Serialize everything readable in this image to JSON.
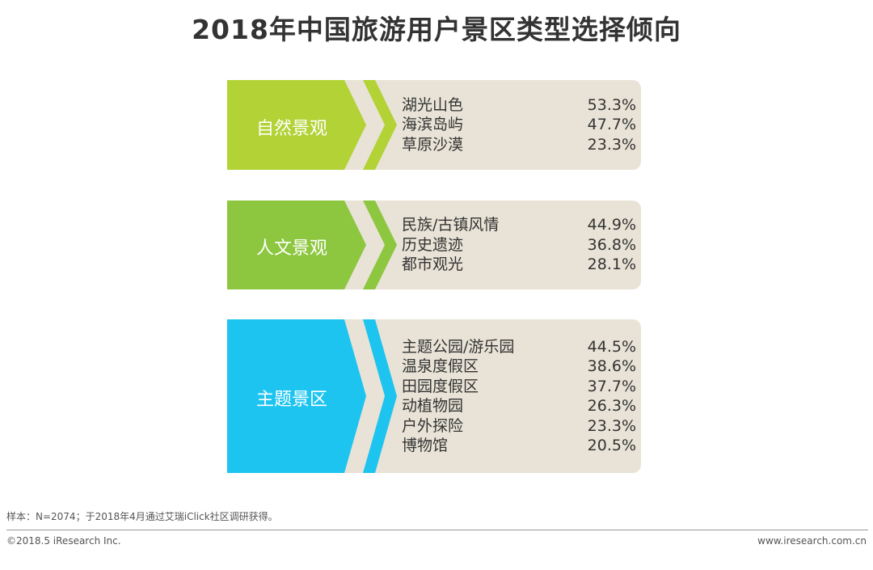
{
  "chart_data": {
    "type": "table",
    "title": "2018年中国旅游用户景区类型选择倾向",
    "groups": [
      {
        "name": "自然景观",
        "color": "#b2d235",
        "items": [
          {
            "label": "湖光山色",
            "value": 53.3,
            "display": "53.3%"
          },
          {
            "label": "海滨岛屿",
            "value": 47.7,
            "display": "47.7%"
          },
          {
            "label": "草原沙漠",
            "value": 23.3,
            "display": "23.3%"
          }
        ]
      },
      {
        "name": "人文景观",
        "color": "#8dc63f",
        "items": [
          {
            "label": "民族/古镇风情",
            "value": 44.9,
            "display": "44.9%"
          },
          {
            "label": "历史遗迹",
            "value": 36.8,
            "display": "36.8%"
          },
          {
            "label": "都市观光",
            "value": 28.1,
            "display": "28.1%"
          }
        ]
      },
      {
        "name": "主题景区",
        "color": "#1ec4f0",
        "items": [
          {
            "label": "主题公园/游乐园",
            "value": 44.5,
            "display": "44.5%"
          },
          {
            "label": "温泉度假区",
            "value": 38.6,
            "display": "38.6%"
          },
          {
            "label": "田园度假区",
            "value": 37.7,
            "display": "37.7%"
          },
          {
            "label": "动植物园",
            "value": 26.3,
            "display": "26.3%"
          },
          {
            "label": "户外探险",
            "value": 23.3,
            "display": "23.3%"
          },
          {
            "label": "博物馆",
            "value": 20.5,
            "display": "20.5%"
          }
        ]
      }
    ]
  },
  "footer": {
    "sample_note": "样本：N=2074；于2018年4月通过艾瑞iClick社区调研获得。",
    "copyright": "©2018.5 iResearch Inc.",
    "website": "www.iresearch.com.cn"
  }
}
